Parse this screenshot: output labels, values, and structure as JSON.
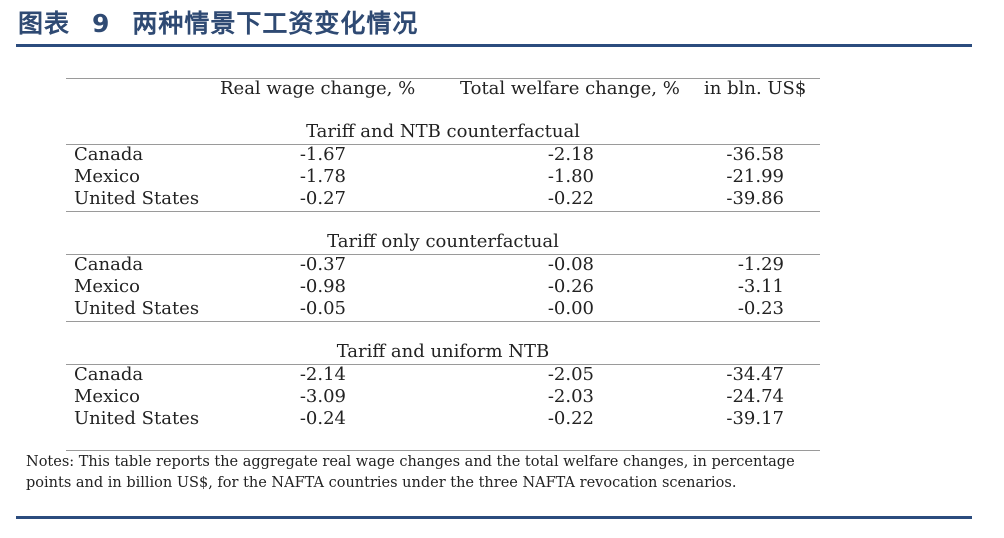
{
  "figure": {
    "label": "图表",
    "number": "9",
    "title": "两种情景下工资变化情况"
  },
  "table": {
    "headers": [
      "Real wage change, %",
      "Total welfare change, %",
      "in bln. US$"
    ],
    "sections": [
      {
        "title": "Tariff and NTB counterfactual",
        "rows": [
          {
            "country": "Canada",
            "wage": "-1.67",
            "welfare_pct": "-2.18",
            "welfare_bln": "-36.58"
          },
          {
            "country": "Mexico",
            "wage": "-1.78",
            "welfare_pct": "-1.80",
            "welfare_bln": "-21.99"
          },
          {
            "country": "United States",
            "wage": "-0.27",
            "welfare_pct": "-0.22",
            "welfare_bln": "-39.86"
          }
        ]
      },
      {
        "title": "Tariff only counterfactual",
        "rows": [
          {
            "country": "Canada",
            "wage": "-0.37",
            "welfare_pct": "-0.08",
            "welfare_bln": "-1.29"
          },
          {
            "country": "Mexico",
            "wage": "-0.98",
            "welfare_pct": "-0.26",
            "welfare_bln": "-3.11"
          },
          {
            "country": "United States",
            "wage": "-0.05",
            "welfare_pct": "-0.00",
            "welfare_bln": "-0.23"
          }
        ]
      },
      {
        "title": "Tariff and uniform NTB",
        "rows": [
          {
            "country": "Canada",
            "wage": "-2.14",
            "welfare_pct": "-2.05",
            "welfare_bln": "-34.47"
          },
          {
            "country": "Mexico",
            "wage": "-3.09",
            "welfare_pct": "-2.03",
            "welfare_bln": "-24.74"
          },
          {
            "country": "United States",
            "wage": "-0.24",
            "welfare_pct": "-0.22",
            "welfare_bln": "-39.17"
          }
        ]
      }
    ]
  },
  "notes": {
    "line1": "Notes: This table reports the aggregate real wage changes and the total welfare changes, in percentage",
    "line2": "points and in billion US$, for the NAFTA countries under the three NAFTA revocation scenarios."
  },
  "colors": {
    "title": "#2f4a73",
    "rule": "#2b4c7e"
  }
}
